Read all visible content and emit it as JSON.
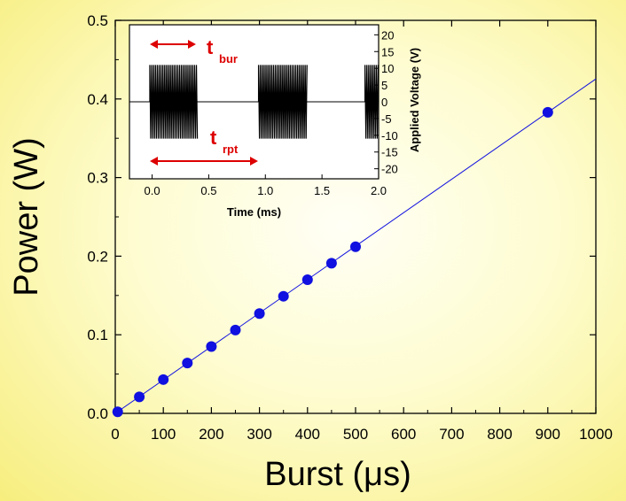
{
  "chart_data": [
    {
      "type": "scatter",
      "xlabel": "Burst (μs)",
      "ylabel": "Power (W)",
      "xlim": [
        0,
        1000
      ],
      "ylim": [
        0,
        0.5
      ],
      "xticks": [
        "0",
        "100",
        "200",
        "300",
        "400",
        "500",
        "600",
        "700",
        "800",
        "900",
        "1000"
      ],
      "yticks": [
        "0.0",
        "0.1",
        "0.2",
        "0.3",
        "0.4",
        "0.5"
      ],
      "grid": false,
      "series": [
        {
          "color": "#1010e0",
          "x": [
            5,
            50,
            100,
            150,
            200,
            250,
            300,
            350,
            400,
            450,
            500,
            900
          ],
          "y": [
            0.002,
            0.021,
            0.043,
            0.064,
            0.085,
            0.106,
            0.127,
            0.149,
            0.17,
            0.191,
            0.212,
            0.383
          ]
        }
      ],
      "fit_line": {
        "color": "#1010e0",
        "x": [
          0,
          1000
        ],
        "y": [
          0.0,
          0.4255
        ]
      }
    },
    {
      "type": "line",
      "xlabel": "Time (ms)",
      "ylabel": "Applied Voltage (V)",
      "xlim": [
        -0.2,
        2.0
      ],
      "ylim": [
        -23,
        23
      ],
      "xticks": [
        "0.0",
        "0.5",
        "1.0",
        "1.5",
        "2.0"
      ],
      "yticks": [
        "20",
        "15",
        "10",
        "5",
        "0",
        "-5",
        "-10",
        "-15",
        "-20"
      ],
      "bursts": [
        {
          "start": -0.02,
          "end": 0.4,
          "amplitude": 11
        },
        {
          "start": 0.94,
          "end": 1.37,
          "amplitude": 11
        },
        {
          "start": 1.88,
          "end": 2.0,
          "amplitude": 11
        }
      ],
      "baseline": 0,
      "annotations": [
        {
          "main": "t",
          "sub": "bur",
          "color": "#dd0000"
        },
        {
          "main": "t",
          "sub": "rpt",
          "color": "#dd0000"
        }
      ]
    }
  ]
}
